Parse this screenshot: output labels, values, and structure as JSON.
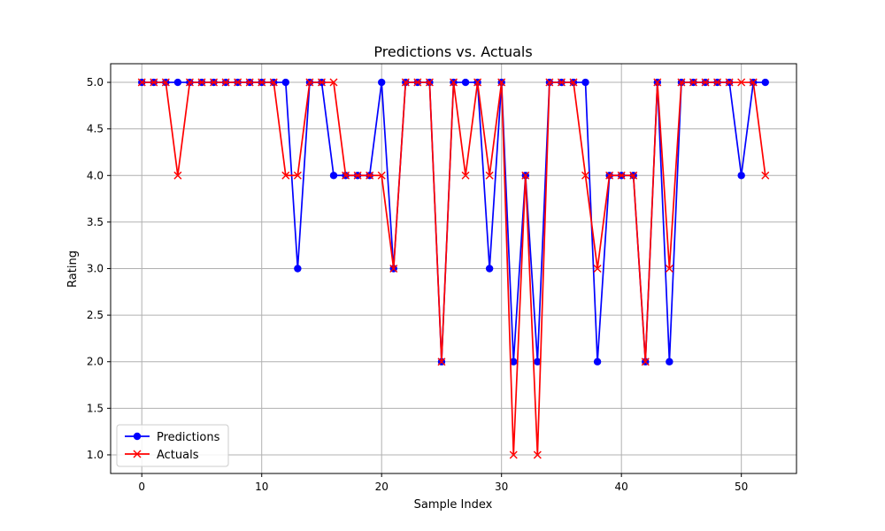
{
  "chart_data": {
    "type": "line",
    "title": "Predictions vs. Actuals",
    "xlabel": "Sample Index",
    "ylabel": "Rating",
    "xlim": [
      -2.6,
      54.6
    ],
    "ylim": [
      0.8,
      5.2
    ],
    "xticks": [
      0,
      10,
      20,
      30,
      40,
      50
    ],
    "yticks": [
      1.0,
      1.5,
      2.0,
      2.5,
      3.0,
      3.5,
      4.0,
      4.5,
      5.0
    ],
    "grid": true,
    "legend_position": "lower-left",
    "x": [
      0,
      1,
      2,
      3,
      4,
      5,
      6,
      7,
      8,
      9,
      10,
      11,
      12,
      13,
      14,
      15,
      16,
      17,
      18,
      19,
      20,
      21,
      22,
      23,
      24,
      25,
      26,
      27,
      28,
      29,
      30,
      31,
      32,
      33,
      34,
      35,
      36,
      37,
      38,
      39,
      40,
      41,
      42,
      43,
      44,
      45,
      46,
      47,
      48,
      49,
      50,
      51,
      52
    ],
    "series": [
      {
        "name": "Predictions",
        "color": "#0000ff",
        "marker": "circle",
        "values": [
          5,
          5,
          5,
          5,
          5,
          5,
          5,
          5,
          5,
          5,
          5,
          5,
          5,
          3,
          5,
          5,
          4,
          4,
          4,
          4,
          5,
          3,
          5,
          5,
          5,
          2,
          5,
          5,
          5,
          3,
          5,
          2,
          4,
          2,
          5,
          5,
          5,
          5,
          2,
          4,
          4,
          4,
          2,
          5,
          2,
          5,
          5,
          5,
          5,
          5,
          4,
          5,
          5
        ]
      },
      {
        "name": "Actuals",
        "color": "#ff0000",
        "marker": "x",
        "values": [
          5,
          5,
          5,
          4,
          5,
          5,
          5,
          5,
          5,
          5,
          5,
          5,
          4,
          4,
          5,
          5,
          5,
          4,
          4,
          4,
          4,
          3,
          5,
          5,
          5,
          2,
          5,
          4,
          5,
          4,
          5,
          1,
          4,
          1,
          5,
          5,
          5,
          4,
          3,
          4,
          4,
          4,
          2,
          5,
          3,
          5,
          5,
          5,
          5,
          5,
          5,
          5,
          4
        ]
      }
    ]
  }
}
